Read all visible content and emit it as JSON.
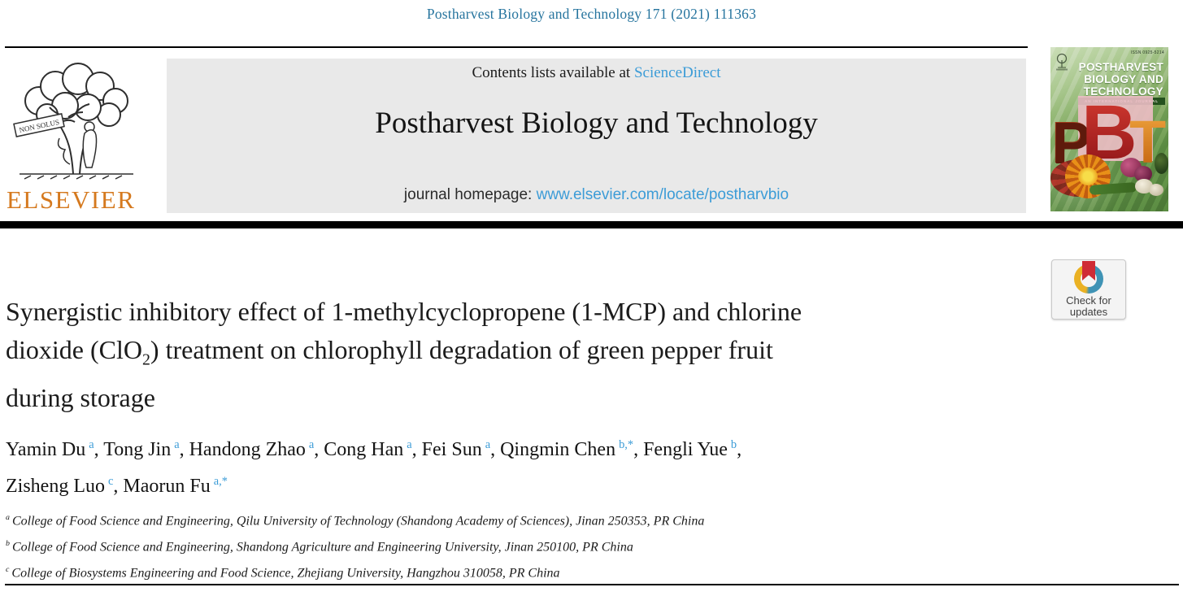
{
  "page": {
    "journal_ref": "Postharvest Biology and Technology 171 (2021) 111363"
  },
  "elsevier": {
    "wordmark": "ELSEVIER",
    "banner_text": "NON SOLUS"
  },
  "banner": {
    "contents_prefix": "Contents lists available at ",
    "sciencedirect_link": "ScienceDirect",
    "journal_title": "Postharvest Biology and Technology",
    "homepage_prefix": "journal homepage: ",
    "homepage_url": "www.elsevier.com/locate/postharvbio"
  },
  "cover": {
    "issn": "ISSN 0925-5214",
    "title_line1": "POSTHARVEST",
    "title_line2": "BIOLOGY AND",
    "title_line3": "TECHNOLOGY",
    "subtitle": "AN INTERNATIONAL JOURNAL",
    "letter_p": "P",
    "letter_b": "B",
    "letter_t": "T"
  },
  "check_badge": {
    "line1": "Check for",
    "line2": "updates"
  },
  "article": {
    "title_lines": [
      [
        {
          "t": "Synergistic inhibitory effect of 1-methylcyclopropene (1-MCP) and chlorine"
        }
      ],
      [
        {
          "t": "dioxide (ClO"
        },
        {
          "t": "2",
          "style": "sub"
        },
        {
          "t": ") treatment on chlorophyll degradation of green pepper fruit"
        }
      ],
      [
        {
          "t": "during storage"
        }
      ]
    ],
    "author_lines": [
      [
        {
          "t": "Yamin Du"
        },
        {
          "t": "a",
          "style": "sup"
        },
        {
          "t": ", Tong Jin"
        },
        {
          "t": "a",
          "style": "sup"
        },
        {
          "t": ", Handong Zhao"
        },
        {
          "t": "a",
          "style": "sup"
        },
        {
          "t": ", Cong Han"
        },
        {
          "t": "a",
          "style": "sup"
        },
        {
          "t": ", Fei Sun"
        },
        {
          "t": "a",
          "style": "sup"
        },
        {
          "t": ", Qingmin Chen"
        },
        {
          "t": "b,*",
          "style": "sup"
        },
        {
          "t": ", Fengli Yue"
        },
        {
          "t": "b",
          "style": "sup"
        },
        {
          "t": ","
        }
      ],
      [
        {
          "t": "Zisheng Luo"
        },
        {
          "t": "c",
          "style": "sup"
        },
        {
          "t": ", Maorun Fu"
        },
        {
          "t": "a,*",
          "style": "sup"
        }
      ]
    ],
    "affiliation_lines": [
      [
        {
          "t": "a",
          "style": "supb"
        },
        {
          "t": "College of Food Science and Engineering, Qilu University of Technology (Shandong Academy of Sciences), Jinan 250353, PR China"
        }
      ],
      [
        {
          "t": "b",
          "style": "supb"
        },
        {
          "t": "College of Food Science and Engineering, Shandong Agriculture and Engineering University, Jinan 250100, PR China"
        }
      ],
      [
        {
          "t": "c",
          "style": "supb"
        },
        {
          "t": "College of Biosystems Engineering and Food Science, Zhejiang University, Hangzhou 310058, PR China"
        }
      ]
    ]
  },
  "colors": {
    "link_dark": "#26749E",
    "link_light": "#3C9CD7",
    "elsevier_orange": "#D5791E",
    "banner_bg": "#E9E9E9",
    "crossmark_red": "#CF2B35",
    "crossmark_blue": "#3F93B5",
    "crossmark_yellow": "#EAB123"
  }
}
